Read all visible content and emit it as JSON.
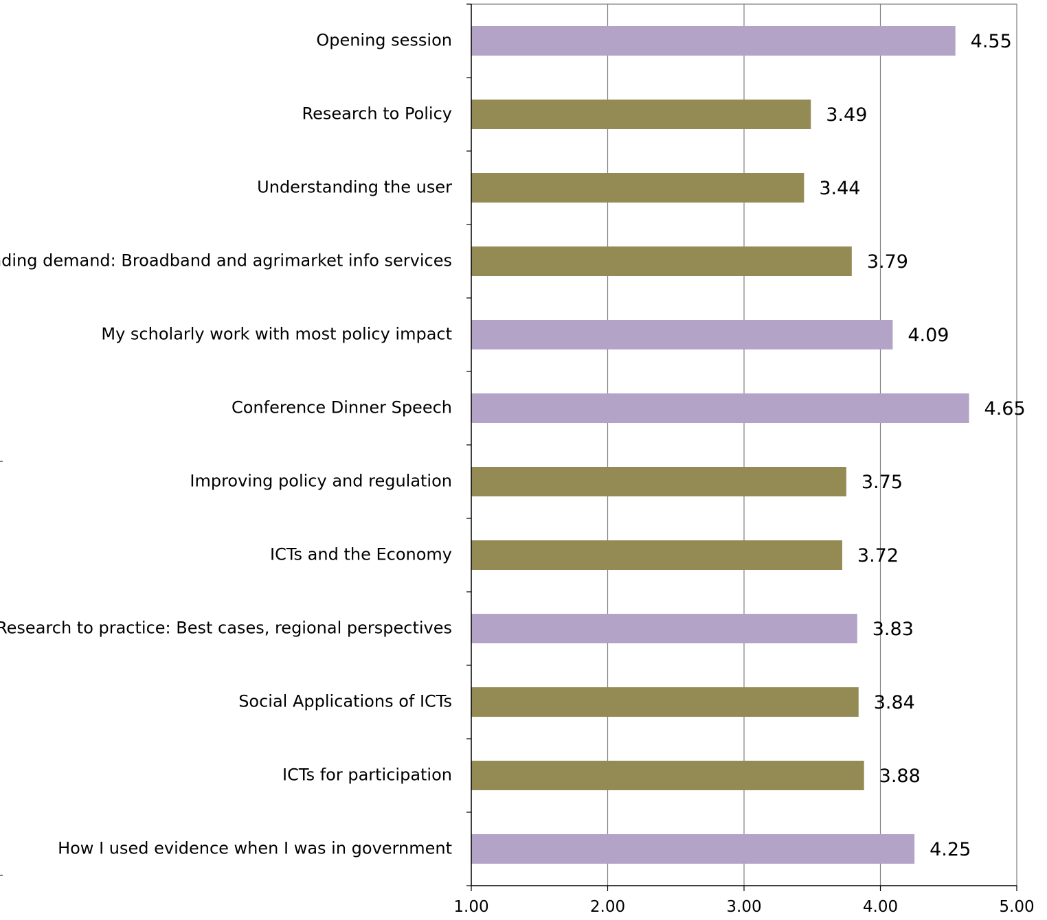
{
  "colors": {
    "purple": "#b3a3c7",
    "olive": "#948a54",
    "grid": "#7f7f7f",
    "axis": "#000000"
  },
  "chart_data": {
    "type": "bar",
    "orientation": "horizontal",
    "categories": [
      "Opening session",
      "Research to Policy",
      "Understanding the user",
      "Understanding demand:  Broadband and agrimarket info services",
      "My scholarly work with most policy impact",
      "Conference Dinner  Speech",
      "Improving policy and regulation",
      "ICTs and the Economy",
      "Research to practice: Best cases, regional perspectives",
      "Social Applications of ICTs",
      "ICTs for participation",
      "How I used evidence when I was in government"
    ],
    "values": [
      4.55,
      3.49,
      3.44,
      3.79,
      4.09,
      4.65,
      3.75,
      3.72,
      3.83,
      3.84,
      3.88,
      4.25
    ],
    "value_labels": [
      "4.55",
      "3.49",
      "3.44",
      "3.79",
      "4.09",
      "4.65",
      "3.75",
      "3.72",
      "3.83",
      "3.84",
      "3.88",
      "4.25"
    ],
    "bar_colors": [
      "purple",
      "olive",
      "olive",
      "olive",
      "purple",
      "purple",
      "olive",
      "olive",
      "purple",
      "olive",
      "olive",
      "purple"
    ],
    "xlim": [
      1.0,
      5.0
    ],
    "xticks": [
      1.0,
      2.0,
      3.0,
      4.0,
      5.0
    ],
    "xtick_labels": [
      "1.00",
      "2.00",
      "3.00",
      "4.00",
      "5.00"
    ],
    "grid": "vertical",
    "title": "",
    "xlabel": "",
    "ylabel": ""
  }
}
